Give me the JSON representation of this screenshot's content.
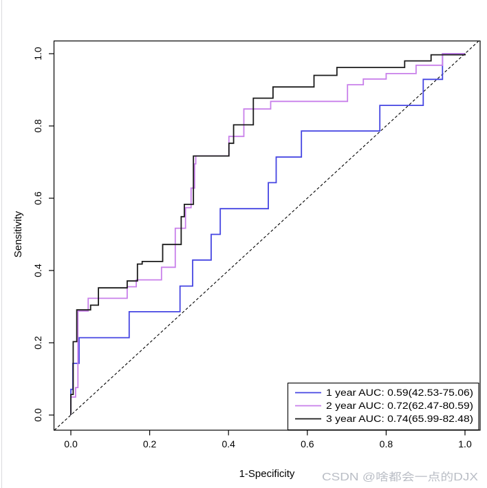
{
  "chart_data": {
    "type": "line",
    "subtype": "roc-step-curves",
    "title": "",
    "xlabel": "1-Specificity",
    "ylabel": "Sensitivity",
    "xlim": [
      0,
      1
    ],
    "ylim": [
      0,
      1
    ],
    "grid": false,
    "diagonal_reference_line": true,
    "x_tick_labels": [
      "0.0",
      "0.2",
      "0.4",
      "0.6",
      "0.8",
      "1.0"
    ],
    "y_tick_labels": [
      "0.0",
      "0.2",
      "0.4",
      "0.6",
      "0.8",
      "1.0"
    ],
    "x_tick_values": [
      0,
      0.2,
      0.4,
      0.6,
      0.8,
      1.0
    ],
    "y_tick_values": [
      0,
      0.2,
      0.4,
      0.6,
      0.8,
      1.0
    ],
    "legend": {
      "position": "bottom-right",
      "entries": [
        {
          "label": "1 year AUC: 0.59(42.53-75.06)",
          "color": "#4545e2"
        },
        {
          "label": "2 year AUC: 0.72(62.47-80.59)",
          "color": "#c87fea"
        },
        {
          "label": "3 year AUC: 0.74(65.99-82.48)",
          "color": "#1a1a1a"
        }
      ]
    },
    "series": [
      {
        "name": "1 year",
        "auc": 0.59,
        "ci": "42.53-75.06",
        "color": "#4545e2",
        "points": [
          [
            0,
            0
          ],
          [
            0,
            0.071
          ],
          [
            0.005,
            0.071
          ],
          [
            0.005,
            0.143
          ],
          [
            0.021,
            0.143
          ],
          [
            0.021,
            0.214
          ],
          [
            0.148,
            0.214
          ],
          [
            0.148,
            0.286
          ],
          [
            0.277,
            0.286
          ],
          [
            0.277,
            0.357
          ],
          [
            0.309,
            0.357
          ],
          [
            0.309,
            0.429
          ],
          [
            0.356,
            0.429
          ],
          [
            0.356,
            0.5
          ],
          [
            0.379,
            0.5
          ],
          [
            0.379,
            0.571
          ],
          [
            0.501,
            0.571
          ],
          [
            0.501,
            0.643
          ],
          [
            0.521,
            0.643
          ],
          [
            0.521,
            0.714
          ],
          [
            0.585,
            0.714
          ],
          [
            0.585,
            0.786
          ],
          [
            0.784,
            0.786
          ],
          [
            0.784,
            0.857
          ],
          [
            0.894,
            0.857
          ],
          [
            0.894,
            0.929
          ],
          [
            0.943,
            0.929
          ],
          [
            0.943,
            1
          ],
          [
            1,
            1
          ]
        ]
      },
      {
        "name": "2 year",
        "auc": 0.72,
        "ci": "62.47-80.59",
        "color": "#c87fea",
        "points": [
          [
            0,
            0
          ],
          [
            0,
            0.05
          ],
          [
            0.012,
            0.05
          ],
          [
            0.012,
            0.076
          ],
          [
            0.018,
            0.076
          ],
          [
            0.018,
            0.288
          ],
          [
            0.044,
            0.288
          ],
          [
            0.044,
            0.323
          ],
          [
            0.143,
            0.323
          ],
          [
            0.143,
            0.355
          ],
          [
            0.166,
            0.355
          ],
          [
            0.166,
            0.374
          ],
          [
            0.23,
            0.374
          ],
          [
            0.23,
            0.409
          ],
          [
            0.265,
            0.409
          ],
          [
            0.265,
            0.517
          ],
          [
            0.291,
            0.517
          ],
          [
            0.291,
            0.574
          ],
          [
            0.305,
            0.574
          ],
          [
            0.305,
            0.628
          ],
          [
            0.314,
            0.628
          ],
          [
            0.314,
            0.695
          ],
          [
            0.317,
            0.695
          ],
          [
            0.317,
            0.717
          ],
          [
            0.401,
            0.717
          ],
          [
            0.401,
            0.771
          ],
          [
            0.439,
            0.771
          ],
          [
            0.439,
            0.847
          ],
          [
            0.507,
            0.847
          ],
          [
            0.507,
            0.868
          ],
          [
            0.702,
            0.868
          ],
          [
            0.702,
            0.914
          ],
          [
            0.742,
            0.914
          ],
          [
            0.742,
            0.93
          ],
          [
            0.8,
            0.93
          ],
          [
            0.8,
            0.945
          ],
          [
            0.876,
            0.945
          ],
          [
            0.876,
            0.968
          ],
          [
            0.943,
            0.968
          ],
          [
            0.943,
            1
          ],
          [
            1,
            1
          ]
        ]
      },
      {
        "name": "3 year",
        "auc": 0.74,
        "ci": "65.99-82.48",
        "color": "#1a1a1a",
        "points": [
          [
            0,
            0
          ],
          [
            0,
            0.057
          ],
          [
            0.006,
            0.057
          ],
          [
            0.006,
            0.203
          ],
          [
            0.015,
            0.203
          ],
          [
            0.015,
            0.291
          ],
          [
            0.05,
            0.291
          ],
          [
            0.05,
            0.304
          ],
          [
            0.07,
            0.304
          ],
          [
            0.07,
            0.352
          ],
          [
            0.143,
            0.352
          ],
          [
            0.143,
            0.371
          ],
          [
            0.169,
            0.371
          ],
          [
            0.169,
            0.418
          ],
          [
            0.181,
            0.418
          ],
          [
            0.181,
            0.425
          ],
          [
            0.233,
            0.425
          ],
          [
            0.233,
            0.472
          ],
          [
            0.28,
            0.472
          ],
          [
            0.28,
            0.549
          ],
          [
            0.288,
            0.549
          ],
          [
            0.288,
            0.583
          ],
          [
            0.311,
            0.583
          ],
          [
            0.311,
            0.717
          ],
          [
            0.401,
            0.717
          ],
          [
            0.401,
            0.752
          ],
          [
            0.413,
            0.752
          ],
          [
            0.413,
            0.803
          ],
          [
            0.463,
            0.803
          ],
          [
            0.463,
            0.877
          ],
          [
            0.513,
            0.877
          ],
          [
            0.513,
            0.908
          ],
          [
            0.617,
            0.908
          ],
          [
            0.617,
            0.94
          ],
          [
            0.675,
            0.94
          ],
          [
            0.675,
            0.962
          ],
          [
            0.847,
            0.962
          ],
          [
            0.847,
            0.98
          ],
          [
            0.914,
            0.98
          ],
          [
            0.914,
            0.997
          ],
          [
            1,
            0.997
          ],
          [
            1,
            1
          ]
        ]
      }
    ]
  },
  "watermark": "CSDN @啥都会一点的DJX",
  "colors": {
    "background": "#ffffff",
    "axis": "#000000",
    "watermark_text": "#b9bdc5",
    "page_edge_line": "#d9d9dd"
  }
}
